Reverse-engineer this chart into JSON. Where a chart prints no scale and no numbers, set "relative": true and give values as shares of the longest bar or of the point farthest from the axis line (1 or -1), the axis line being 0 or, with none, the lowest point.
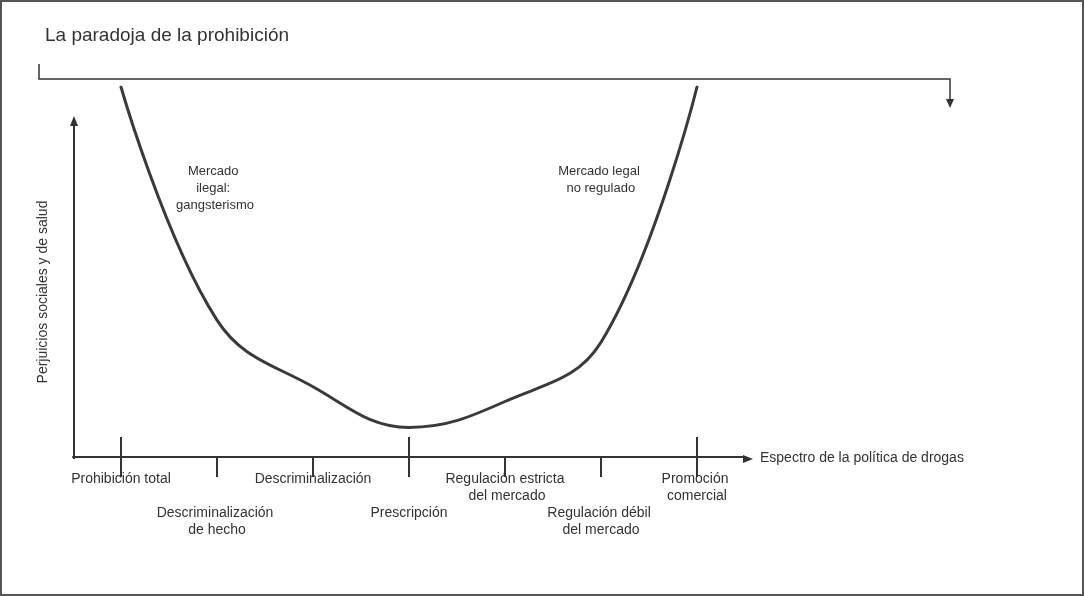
{
  "chart_data": {
    "type": "line",
    "title": "La paradoja de la prohibición",
    "xlabel": "Espectro de la política de drogas",
    "ylabel": "Perjuicios sociales y de salud",
    "categories": [
      "Prohibición total",
      "Descriminalización de hecho",
      "Descriminalización",
      "Prescripción",
      "Regulación estricta del mercado",
      "Regulación débil del mercado",
      "Promoción comercial"
    ],
    "series": [
      {
        "color": "#3a3a3a",
        "values": [
          1.0,
          0.37,
          0.19,
          0.08,
          0.15,
          0.31,
          1.0
        ]
      }
    ],
    "relative": true,
    "marker": "none",
    "line_style": "solid",
    "grid": false,
    "tick_labels": "x",
    "annotations": [
      "Mercado ilegal: gangsterismo",
      "Mercado legal no regulado"
    ]
  }
}
